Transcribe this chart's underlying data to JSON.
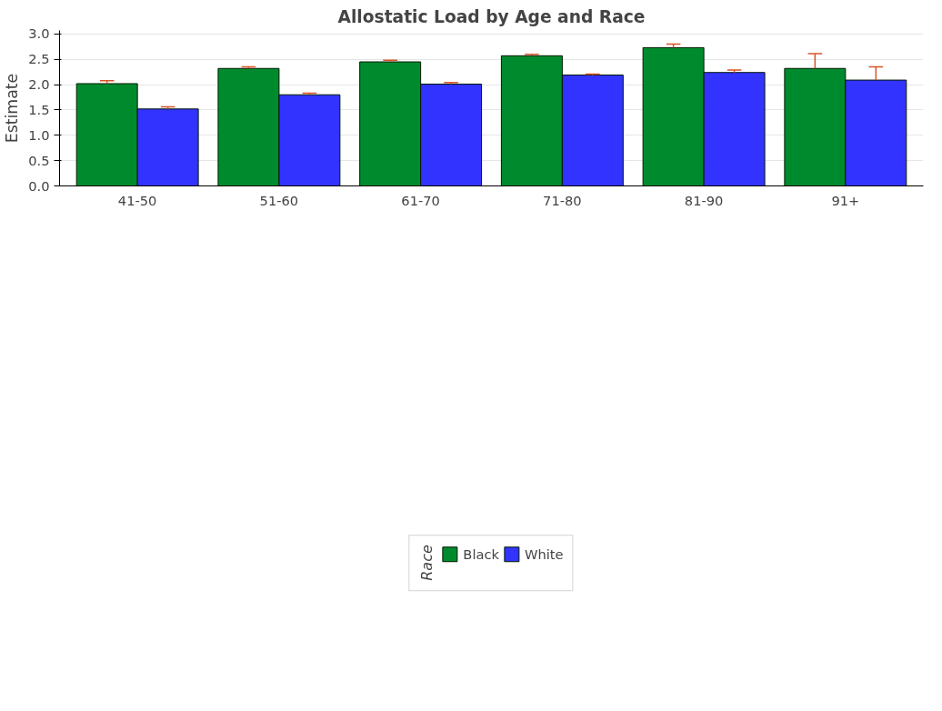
{
  "chart_data": {
    "type": "bar",
    "title": "Allostatic Load by Age and Race",
    "ylabel": "Estimate",
    "legend_title": "Race",
    "legend": "bottom",
    "grid": "y",
    "categories": [
      "41-50",
      "51-60",
      "61-70",
      "71-80",
      "81-90",
      "91+"
    ],
    "ylim": [
      0,
      3.07
    ],
    "yticks": [
      {
        "value": 0,
        "label": "0.0"
      },
      {
        "value": 0.5,
        "label": "0.5"
      },
      {
        "value": 1,
        "label": "1.0"
      },
      {
        "value": 1.5,
        "label": "1.5"
      },
      {
        "value": 2,
        "label": "2.0"
      },
      {
        "value": 2.5,
        "label": "2.5"
      },
      {
        "value": 3,
        "label": "3.0"
      }
    ],
    "series": [
      {
        "name": "Black",
        "color": "#008a2e",
        "values": [
          2.02,
          2.32,
          2.45,
          2.57,
          2.73,
          2.32
        ],
        "errors": [
          [
            2.02,
            2.08
          ],
          [
            2.32,
            2.35
          ],
          [
            2.45,
            2.48
          ],
          [
            2.57,
            2.6
          ],
          [
            2.73,
            2.8
          ],
          [
            2.32,
            2.61
          ]
        ]
      },
      {
        "name": "White",
        "color": "#3333ff",
        "values": [
          1.52,
          1.8,
          2.01,
          2.19,
          2.24,
          2.09
        ],
        "errors": [
          [
            1.52,
            1.56
          ],
          [
            1.8,
            1.83
          ],
          [
            2.01,
            2.04
          ],
          [
            2.19,
            2.21
          ],
          [
            2.24,
            2.29
          ],
          [
            2.09,
            2.35
          ]
        ]
      }
    ]
  }
}
